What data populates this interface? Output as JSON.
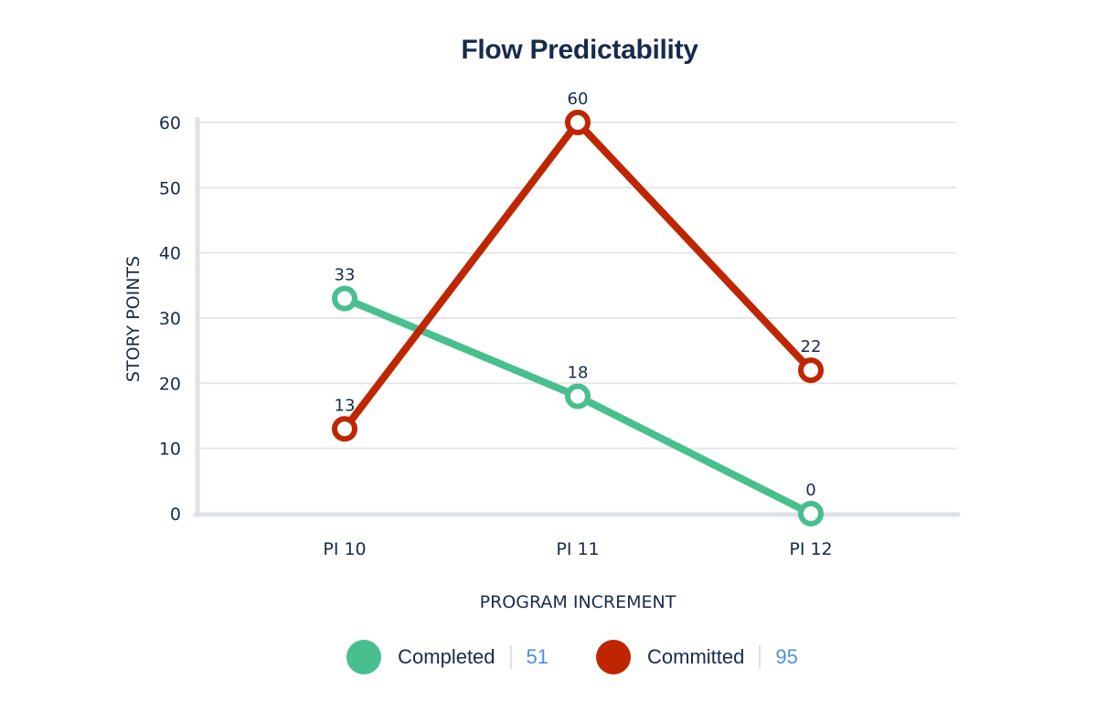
{
  "title": "Flow Predictability",
  "colors": {
    "completed": "#48bf8e",
    "committed": "#bf2600",
    "text": "#172b4d",
    "grid": "#e4e6ea",
    "axis": "#dfe1e6",
    "legend_value": "#4c8fe6"
  },
  "axes": {
    "ylabel": "STORY POINTS",
    "xlabel": "PROGRAM INCREMENT",
    "yticks": [
      "0",
      "10",
      "20",
      "30",
      "40",
      "50",
      "60"
    ],
    "xticks": [
      "PI 10",
      "PI 11",
      "PI 12"
    ]
  },
  "legend": {
    "items": [
      {
        "label": "Completed",
        "value": "51"
      },
      {
        "label": "Committed",
        "value": "95"
      }
    ]
  },
  "chart_data": {
    "type": "line",
    "title": "Flow Predictability",
    "xlabel": "PROGRAM INCREMENT",
    "ylabel": "STORY POINTS",
    "categories": [
      "PI 10",
      "PI 11",
      "PI 12"
    ],
    "series": [
      {
        "name": "Completed",
        "values": [
          33,
          18,
          0
        ],
        "total": 51,
        "color": "#48bf8e"
      },
      {
        "name": "Committed",
        "values": [
          13,
          60,
          22
        ],
        "total": 95,
        "color": "#bf2600"
      }
    ],
    "ylim": [
      0,
      60
    ],
    "yticks": [
      0,
      10,
      20,
      30,
      40,
      50,
      60
    ],
    "grid": true,
    "legend_position": "bottom",
    "data_labels": true
  }
}
